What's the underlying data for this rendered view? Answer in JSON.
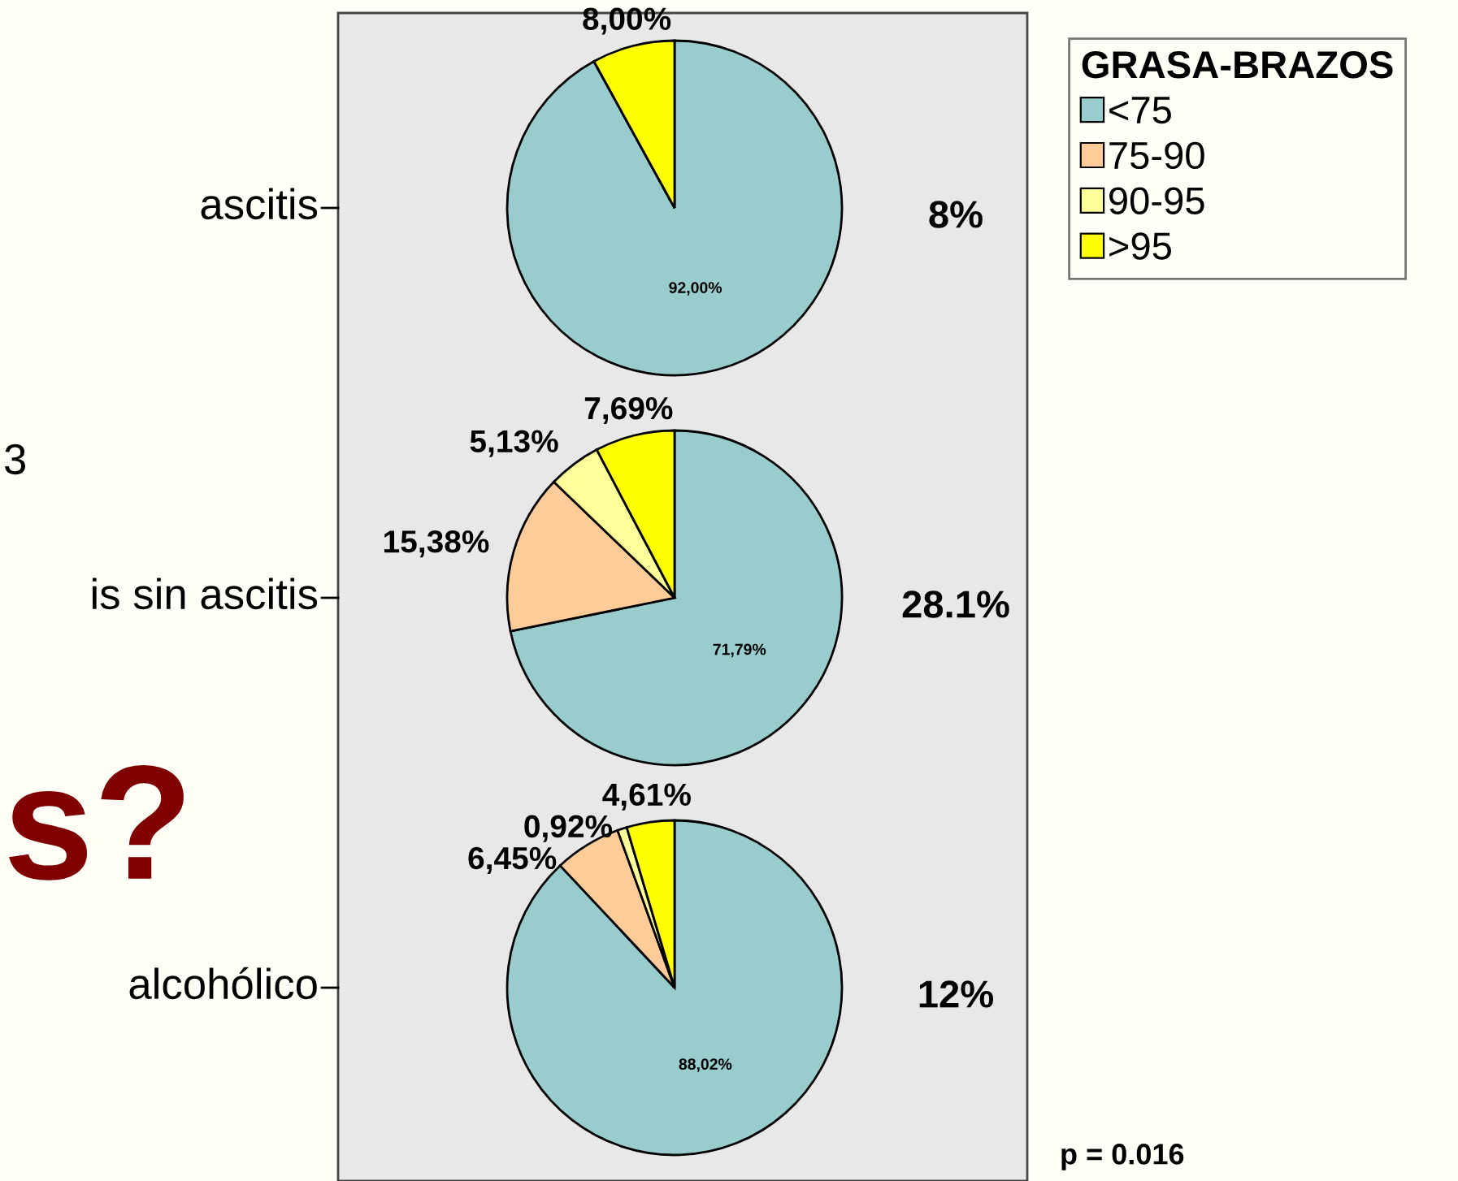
{
  "chart_data": [
    {
      "type": "pie",
      "title": "ascitis",
      "legend": "right",
      "legend_title": "GRASA-BRAZOS",
      "categories": [
        "<75",
        "75-90",
        "90-95",
        ">95"
      ],
      "colors": [
        "#99cccc",
        "#ffcc99",
        "#ffff99",
        "#ffff00"
      ],
      "values": [
        92.0,
        0,
        0,
        8.0
      ],
      "value_labels": [
        "92,00%",
        null,
        null,
        "8,00%"
      ],
      "annotations": [
        "8%"
      ]
    },
    {
      "type": "pie",
      "title": "is sin ascitis",
      "colors": [
        "#99cccc",
        "#ffcc99",
        "#ffff99",
        "#ffff00"
      ],
      "values": [
        71.79,
        15.38,
        5.13,
        7.69
      ],
      "value_labels": [
        "71,79%",
        "15,38%",
        "5,13%",
        "7,69%"
      ],
      "annotations": [
        "28.1%",
        "3"
      ]
    },
    {
      "type": "pie",
      "title": "alcohólico",
      "colors": [
        "#99cccc",
        "#ffcc99",
        "#ffff99",
        "#ffff00"
      ],
      "values": [
        88.02,
        6.45,
        0.92,
        4.61
      ],
      "value_labels": [
        "88,02%",
        "6,45%",
        "0,92%",
        "4,61%"
      ],
      "annotations": [
        "12%",
        "s?",
        "p = 0.016"
      ]
    }
  ]
}
